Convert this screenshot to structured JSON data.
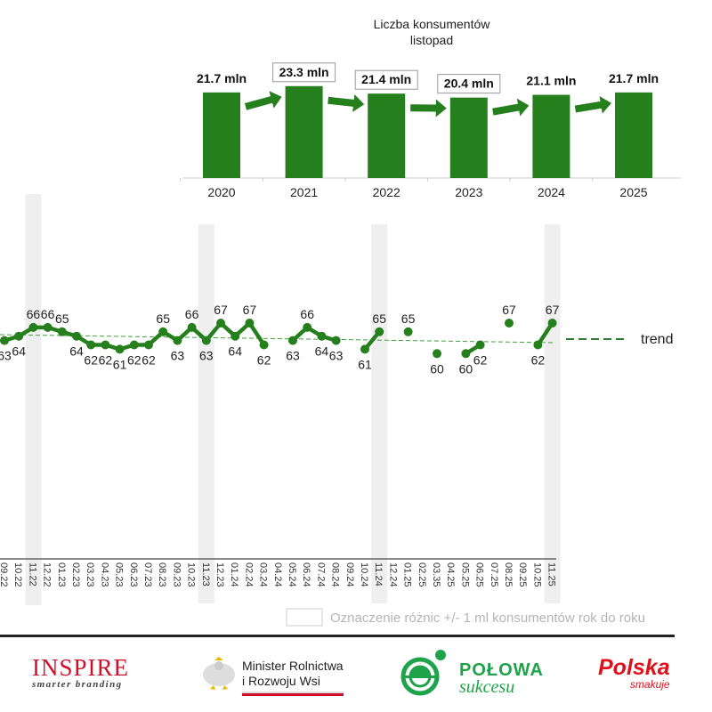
{
  "chart_data": [
    {
      "type": "bar",
      "title": "Liczba konsumentów",
      "subtitle": "listopad",
      "categories": [
        "2020",
        "2021",
        "2022",
        "2023",
        "2024",
        "2025"
      ],
      "values": [
        21.7,
        23.3,
        21.4,
        20.4,
        21.1,
        21.7
      ],
      "data_labels": [
        "21.7 mln",
        "23.3 mln",
        "21.4 mln",
        "20.4 mln",
        "21.1 mln",
        "21.7 mln"
      ],
      "boxed_labels": [
        false,
        true,
        true,
        true,
        false,
        false
      ],
      "bar_color": "#267f1d",
      "arrows_between_bars": true,
      "ylim": [
        0,
        23.3
      ]
    },
    {
      "type": "line",
      "categories": [
        "09.22",
        "10.22",
        "11.22",
        "12.22",
        "01.23",
        "02.23",
        "03.23",
        "04.23",
        "05.23",
        "06.23",
        "07.23",
        "08.23",
        "09.23",
        "10.23",
        "11.23",
        "12.23",
        "01.24",
        "02.24",
        "03.24",
        "04.24",
        "05.24",
        "06.24",
        "07.24",
        "08.24",
        "09.24",
        "10.24",
        "11.24",
        "12.24",
        "01.25",
        "02.25",
        "03.35",
        "04.25",
        "05.25",
        "06.25",
        "07.25",
        "08.25",
        "09.25",
        "10.25",
        "11.25"
      ],
      "values": [
        63,
        64,
        66,
        66,
        65,
        64,
        62,
        62,
        61,
        62,
        62,
        65,
        63,
        66,
        63,
        67,
        64,
        67,
        62,
        null,
        63,
        66,
        64,
        63,
        null,
        61,
        65,
        null,
        65,
        null,
        60,
        null,
        60,
        62,
        null,
        67,
        null,
        62,
        67
      ],
      "highlighted_categories": [
        "11.22",
        "11.23",
        "11.24",
        "11.25"
      ],
      "trend": {
        "label": "trend",
        "style": "dashed",
        "color": "#2e7d32"
      },
      "line_color": "#267f1d",
      "highlight_color": "#efefef",
      "legend_note": "Oznaczenie różnic +/- 1 ml konsumentów rok do roku"
    }
  ],
  "logos": {
    "inspire": {
      "name": "INSPIRE",
      "tagline": "smarter branding"
    },
    "ministry": {
      "line1": "Minister Rolnictwa",
      "line2": "i Rozwoju Wsi"
    },
    "polowa": {
      "line1": "POŁOWA",
      "line2": "sukcesu"
    },
    "polska": {
      "line1": "Polska",
      "line2": "smakuje"
    }
  }
}
